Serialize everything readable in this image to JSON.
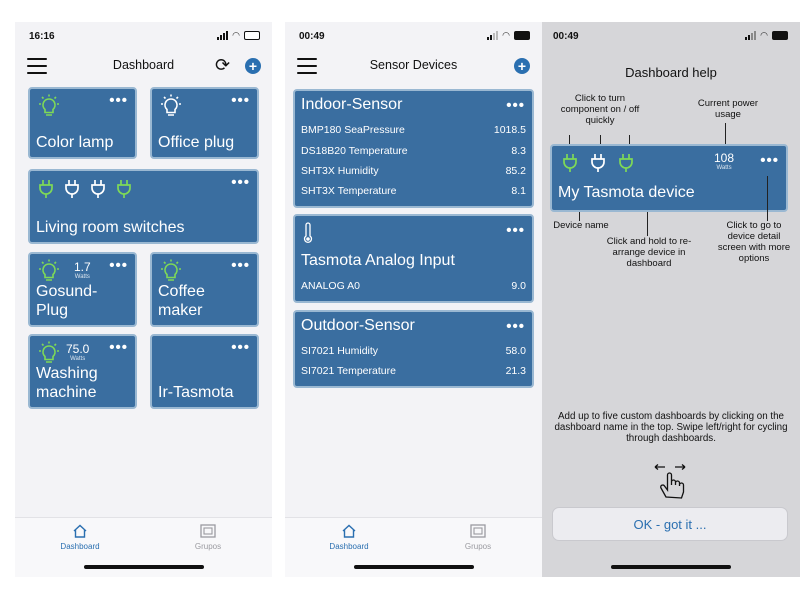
{
  "colors": {
    "tile": "#3a6ea0",
    "tile_border": "#9ab8d2",
    "accent": "#2a6fb0",
    "plug_on": "#7ed957",
    "plug_off": "#ffffff"
  },
  "phone1": {
    "status_time": "16:16",
    "title": "Dashboard",
    "tiles": [
      {
        "name": "Color lamp",
        "icon": "bulb-icon",
        "more": "•••"
      },
      {
        "name": "Office plug",
        "icon": "bulb-outline-icon",
        "more": "•••"
      },
      {
        "name": "Living room switches",
        "icon": "plug-icons",
        "more": "•••"
      },
      {
        "name": "Gosund-Plug",
        "icon": "bulb-icon",
        "watts": "1.7",
        "unit": "Watts",
        "more": "•••"
      },
      {
        "name": "Coffee maker",
        "icon": "bulb-icon",
        "more": "•••"
      },
      {
        "name": "Washing machine",
        "icon": "bulb-icon",
        "watts": "75.0",
        "unit": "Watts",
        "more": "•••"
      },
      {
        "name": "Ir-Tasmota",
        "icon": "",
        "more": "•••"
      }
    ],
    "tabs": [
      {
        "label": "Dashboard",
        "icon": "home-icon"
      },
      {
        "label": "Grupos",
        "icon": "groups-icon"
      }
    ]
  },
  "phone2": {
    "status_time": "00:49",
    "title": "Sensor Devices",
    "cards": [
      {
        "title": "Indoor-Sensor",
        "more": "•••",
        "rows": [
          {
            "label": "BMP180 SeaPressure",
            "value": "1018.5"
          },
          {
            "label": "DS18B20 Temperature",
            "value": "8.3"
          },
          {
            "label": "SHT3X Humidity",
            "value": "85.2"
          },
          {
            "label": "SHT3X Temperature",
            "value": "8.1"
          }
        ]
      },
      {
        "title": "Tasmota Analog Input",
        "icon": "thermometer-icon",
        "more": "•••",
        "rows": [
          {
            "label": "ANALOG A0",
            "value": "9.0"
          }
        ]
      },
      {
        "title": "Outdoor-Sensor",
        "more": "•••",
        "rows": [
          {
            "label": "SI7021 Humidity",
            "value": "58.0"
          },
          {
            "label": "SI7021 Temperature",
            "value": "21.3"
          }
        ]
      }
    ],
    "tabs": [
      {
        "label": "Dashboard",
        "icon": "home-icon"
      },
      {
        "label": "Grupos",
        "icon": "groups-icon"
      }
    ]
  },
  "phone3": {
    "status_time": "00:49",
    "title": "Dashboard help",
    "annotations": {
      "toggle": "Click to turn component on / off quickly",
      "power": "Current power usage",
      "device_name": "Device name",
      "hold": "Click and hold to re-arrange device in dashboard",
      "detail": "Click to go to device detail screen with more options"
    },
    "demo_tile": {
      "name": "My Tasmota device",
      "watts": "108",
      "unit": "Watts",
      "more": "•••"
    },
    "footer_text": "Add up to five custom dashboards by clicking on the dashboard name in the top. Swipe left/right for cycling through dashboards.",
    "ok_button": "OK - got it ..."
  }
}
